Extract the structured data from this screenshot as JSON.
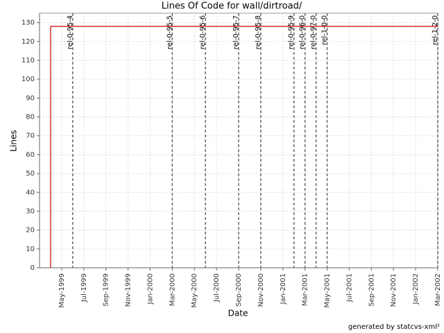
{
  "chart_data": {
    "type": "line",
    "title": "Lines Of Code for wall/dirtroad/",
    "x_label": "Date",
    "y_label": "Lines",
    "x": [
      "1999-04",
      "1999-04",
      "2002-03"
    ],
    "series": [
      {
        "name": "Lines",
        "color": "#cc0000",
        "values": [
          0,
          128,
          128
        ]
      }
    ],
    "xlim": [
      "1999-03",
      "2002-03"
    ],
    "xticks": [
      {
        "value": "1999-05",
        "label": "May-1999"
      },
      {
        "value": "1999-07",
        "label": "Jul-1999"
      },
      {
        "value": "1999-09",
        "label": "Sep-1999"
      },
      {
        "value": "1999-11",
        "label": "Nov-1999"
      },
      {
        "value": "2000-01",
        "label": "Jan-2000"
      },
      {
        "value": "2000-03",
        "label": "Mar-2000"
      },
      {
        "value": "2000-05",
        "label": "May-2000"
      },
      {
        "value": "2000-07",
        "label": "Jul-2000"
      },
      {
        "value": "2000-09",
        "label": "Sep-2000"
      },
      {
        "value": "2000-11",
        "label": "Nov-2000"
      },
      {
        "value": "2001-01",
        "label": "Jan-2001"
      },
      {
        "value": "2001-03",
        "label": "Mar-2001"
      },
      {
        "value": "2001-05",
        "label": "May-2001"
      },
      {
        "value": "2001-07",
        "label": "Jul-2001"
      },
      {
        "value": "2001-09",
        "label": "Sep-2001"
      },
      {
        "value": "2001-11",
        "label": "Nov-2001"
      },
      {
        "value": "2002-01",
        "label": "Jan-2002"
      },
      {
        "value": "2002-03",
        "label": "Mar-2002"
      }
    ],
    "ylim": [
      0,
      135
    ],
    "yticks": [
      0,
      10,
      20,
      30,
      40,
      50,
      60,
      70,
      80,
      90,
      100,
      110,
      120,
      130
    ],
    "grid": true,
    "markers": [
      {
        "label": "rel-0-95-4",
        "x": "1999-06"
      },
      {
        "label": "rel-0-95-5",
        "x": "2000-03"
      },
      {
        "label": "rel-0-95-6",
        "x": "2000-06"
      },
      {
        "label": "rel-0-95-7",
        "x": "2000-09"
      },
      {
        "label": "rel-0-95-8",
        "x": "2000-11"
      },
      {
        "label": "rel-0-95-9",
        "x": "2001-02"
      },
      {
        "label": "rel-0-96-0",
        "x": "2001-03"
      },
      {
        "label": "rel-0-97-0",
        "x": "2001-04"
      },
      {
        "label": "rel-1-0-0",
        "x": "2001-05"
      },
      {
        "label": "rel-1-2-0",
        "x": "2002-03"
      }
    ]
  },
  "footer": "generated by statcvs-xml²"
}
